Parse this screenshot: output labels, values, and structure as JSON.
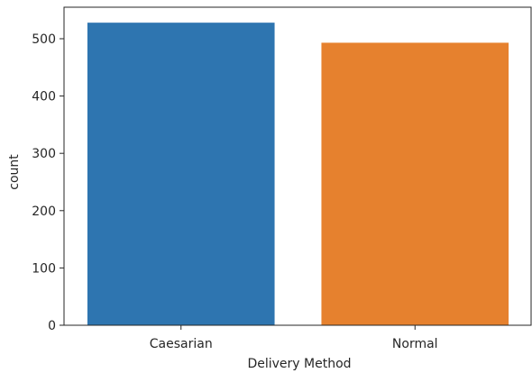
{
  "chart_data": {
    "type": "bar",
    "categories": [
      "Caesarian",
      "Normal"
    ],
    "values": [
      528,
      493
    ],
    "colors": [
      "#2e75b0",
      "#e6812e"
    ],
    "xlabel": "Delivery Method",
    "ylabel": "count",
    "ylim": [
      0,
      555
    ],
    "yticks": [
      0,
      100,
      200,
      300,
      400,
      500
    ],
    "grid": false,
    "legend": "none"
  }
}
